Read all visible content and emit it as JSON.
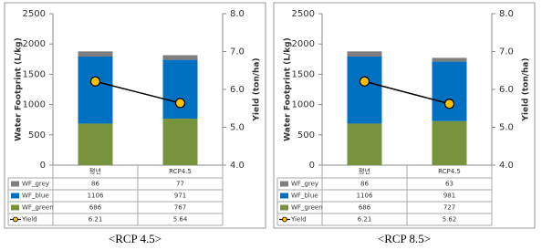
{
  "chart_data": [
    {
      "type": "bar",
      "stacked": true,
      "caption": "<RCP 4.5>",
      "ylabel": "Water Footprint (L/kg)",
      "y2label": "Yield (ton/ha)",
      "categories": [
        "평년",
        "RCP4.5"
      ],
      "series": [
        {
          "name": "WF_grey",
          "color": "#7f7f7f",
          "values": [
            86,
            77
          ]
        },
        {
          "name": "WF_blue",
          "color": "#0070c0",
          "values": [
            1106,
            971
          ]
        },
        {
          "name": "WF_green",
          "color": "#77933c",
          "values": [
            686,
            767
          ]
        },
        {
          "name": "Yield",
          "type": "line",
          "axis": "y2",
          "color": "#ffc000",
          "values": [
            6.21,
            5.64
          ]
        }
      ],
      "ylim": [
        0,
        2500
      ],
      "yticks": [
        0,
        500,
        1000,
        1500,
        2000,
        2500
      ],
      "y2lim": [
        4,
        8
      ],
      "y2ticks": [
        {
          "value": 4,
          "label": "4.0"
        },
        {
          "value": 5,
          "label": "5.0"
        },
        {
          "value": 6,
          "label": "6.0"
        },
        {
          "value": 7,
          "label": "7.0"
        },
        {
          "value": 8,
          "label": "8.0"
        }
      ],
      "grid": false
    },
    {
      "type": "bar",
      "stacked": true,
      "caption": "<RCP 8.5>",
      "ylabel": "Water Footprint (L/kg)",
      "y2label": "Yield (ton/ha)",
      "categories": [
        "평년",
        "RCP4.5"
      ],
      "series": [
        {
          "name": "WF_grey",
          "color": "#7f7f7f",
          "values": [
            86,
            63
          ]
        },
        {
          "name": "WF_blue",
          "color": "#0070c0",
          "values": [
            1106,
            981
          ]
        },
        {
          "name": "WF_green",
          "color": "#77933c",
          "values": [
            686,
            727
          ]
        },
        {
          "name": "Yield",
          "type": "line",
          "axis": "y2",
          "color": "#ffc000",
          "values": [
            6.21,
            5.62
          ]
        }
      ],
      "ylim": [
        0,
        2500
      ],
      "yticks": [
        0,
        500,
        1000,
        1500,
        2000,
        2500
      ],
      "y2lim": [
        4,
        8
      ],
      "y2ticks": [
        {
          "value": 4,
          "label": "4.0"
        },
        {
          "value": 5,
          "label": "5.0"
        },
        {
          "value": 6,
          "label": "6.0"
        },
        {
          "value": 7,
          "label": "7.0"
        },
        {
          "value": 8,
          "label": "8.0"
        }
      ],
      "grid": false
    }
  ]
}
